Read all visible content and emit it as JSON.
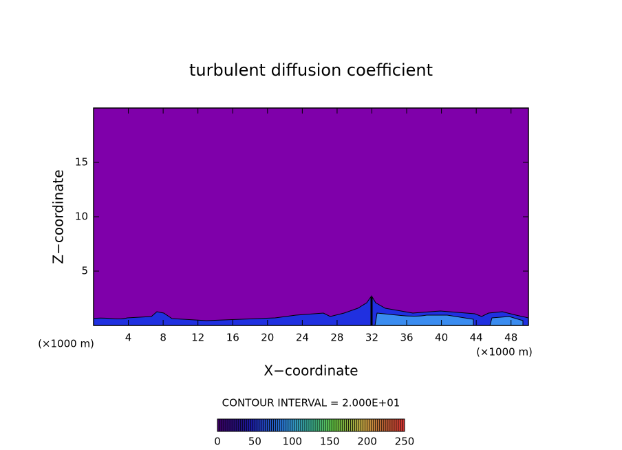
{
  "chart_data": {
    "type": "contour",
    "title": "turbulent diffusion coefficient",
    "xlabel": "X−coordinate",
    "ylabel": "Z−coordinate",
    "xunit": "(×1000 m)",
    "yunit": "(×1000 m)",
    "xlim": [
      0,
      50
    ],
    "ylim": [
      0,
      20
    ],
    "xticks": [
      4,
      8,
      12,
      16,
      20,
      24,
      28,
      32,
      36,
      40,
      44,
      48
    ],
    "yticks": [
      5,
      10,
      15
    ],
    "background_color": "#7f00aa",
    "contour_interval_label": "CONTOUR INTERVAL = 2.000E+01",
    "colorbar": {
      "lim": [
        0,
        250
      ],
      "ticks": [
        0,
        50,
        100,
        150,
        200,
        250
      ]
    }
  }
}
